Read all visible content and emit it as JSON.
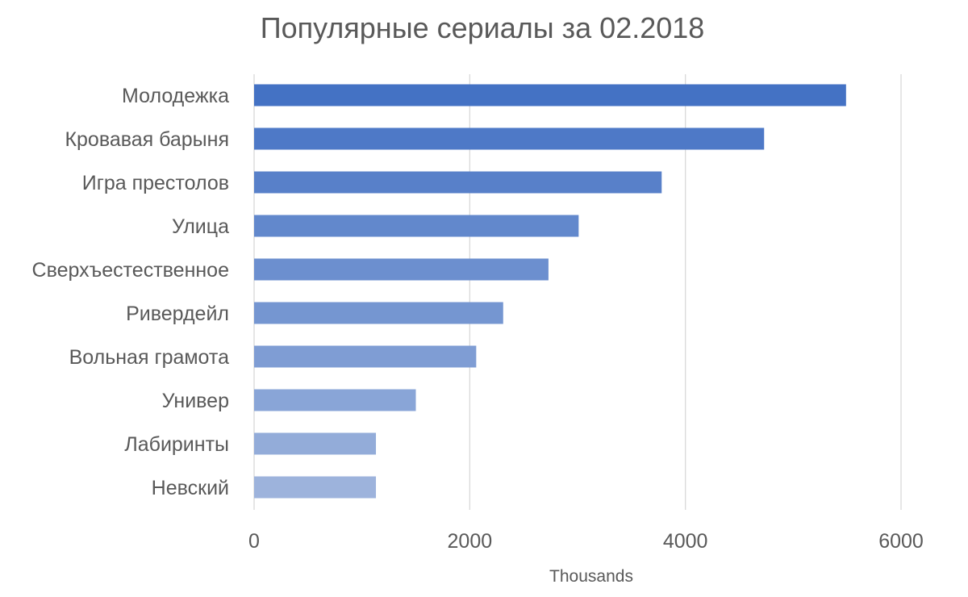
{
  "chart_data": {
    "type": "bar",
    "orientation": "horizontal",
    "title": "Популярные сериалы за 02.2018",
    "categories": [
      "Молодежка",
      "Кровавая барыня",
      "Игра престолов",
      "Улица",
      "Сверхъестественное",
      "Ривердейл",
      "Вольная грамота",
      "Универ",
      "Лабиринты",
      "Невский"
    ],
    "values": [
      5490,
      4730,
      3780,
      3010,
      2730,
      2310,
      2060,
      1500,
      1130,
      1130
    ],
    "xlabel": "",
    "ylabel": "",
    "display_units_label": "Thousands",
    "xlim": [
      0,
      6000
    ],
    "xticks": [
      0,
      2000,
      4000,
      6000
    ],
    "xtick_labels": [
      "0",
      "2000",
      "4000",
      "6000"
    ],
    "grid": true,
    "legend": "none",
    "colors": {
      "bar_start": "#4472c4",
      "bar_end": "#9db3dc",
      "text": "#595959",
      "grid": "#d9d9d9"
    }
  }
}
